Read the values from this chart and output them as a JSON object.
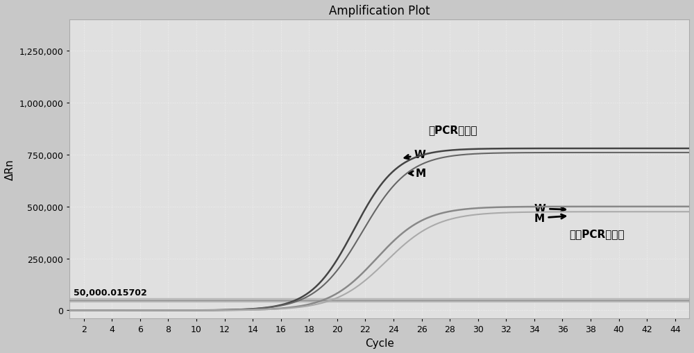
{
  "title": "Amplification Plot",
  "xlabel": "Cycle",
  "ylabel": "ΔRn",
  "x_ticks": [
    2,
    4,
    6,
    8,
    10,
    12,
    14,
    16,
    18,
    20,
    22,
    24,
    26,
    28,
    30,
    32,
    34,
    36,
    38,
    40,
    42,
    44
  ],
  "xlim": [
    1,
    45
  ],
  "ylim": [
    -40000,
    1400000
  ],
  "y_ticks": [
    0,
    250000,
    500000,
    750000,
    1000000,
    1250000
  ],
  "threshold_value": 50000.015702,
  "threshold_label": "50,000.015702",
  "label_with_buffer": "加PCR缓冲涵",
  "label_without_buffer": "不加PCR缓冲涵",
  "bg_color": "#c8c8c8",
  "plot_bg_color": "#e0e0e0",
  "grid_color": "#f0f0f0",
  "curve_color_high_W": "#444444",
  "curve_color_high_M": "#666666",
  "curve_color_low_W": "#888888",
  "curve_color_low_M": "#aaaaaa",
  "threshold_color": "#aaaaaa",
  "curves": {
    "high_W": {
      "L": 780000,
      "k": 0.65,
      "x0": 21.2
    },
    "high_M": {
      "L": 760000,
      "k": 0.6,
      "x0": 21.8
    },
    "low_W": {
      "L": 500000,
      "k": 0.58,
      "x0": 22.8
    },
    "low_M": {
      "L": 475000,
      "k": 0.55,
      "x0": 23.5
    }
  }
}
